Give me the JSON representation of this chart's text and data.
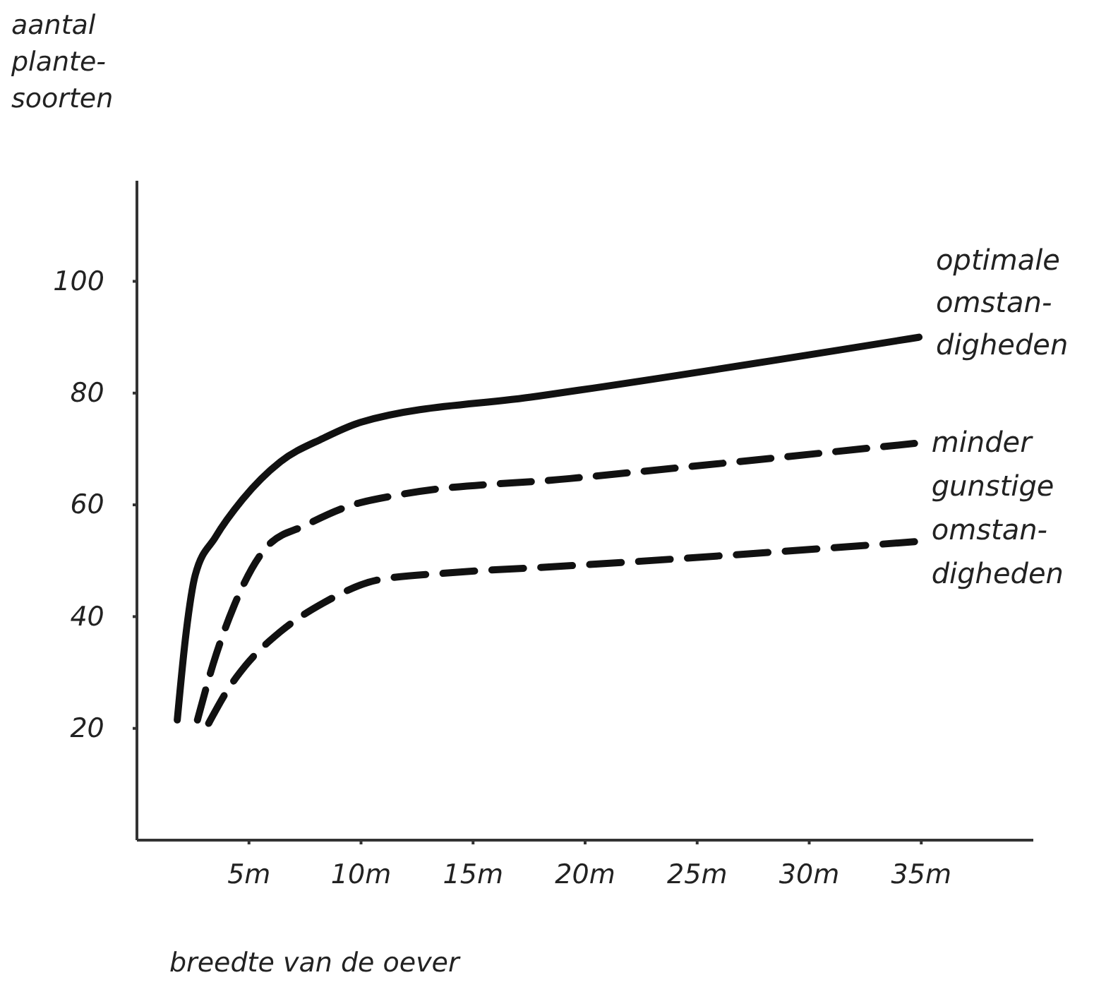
{
  "chart_data": {
    "type": "line",
    "xlabel": "breedte van de oever",
    "ylabel": "aantal\nplante-\nsoorten",
    "xlim": [
      0,
      40
    ],
    "ylim": [
      0,
      118
    ],
    "xticks": [
      {
        "value": 5,
        "label": "5m"
      },
      {
        "value": 10,
        "label": "10m"
      },
      {
        "value": 15,
        "label": "15m"
      },
      {
        "value": 20,
        "label": "20m"
      },
      {
        "value": 25,
        "label": "25m"
      },
      {
        "value": 30,
        "label": "30m"
      },
      {
        "value": 35,
        "label": "35m"
      }
    ],
    "yticks": [
      20,
      40,
      60,
      80,
      100
    ],
    "grid": false,
    "marker": "none",
    "series": [
      {
        "name": "optimale\nomstan-\ndigheden",
        "color": "#111111",
        "line_style": "solid",
        "x": [
          1.8,
          2.2,
          2.6,
          3.5,
          4.7,
          6.4,
          8.3,
          10,
          17.8,
          19.7,
          34.9
        ],
        "values": [
          21.5,
          37.3,
          47.4,
          54.2,
          60.9,
          67.7,
          71.9,
          74.8,
          79.4,
          80.5,
          90.0
        ]
      },
      {
        "color": "#111111",
        "line_style": "dashed",
        "x": [
          2.7,
          3.4,
          4.3,
          5.8,
          7.5,
          9.4,
          11.7,
          19.3,
          34.7
        ],
        "values": [
          21.5,
          31.5,
          41.6,
          52.5,
          56.3,
          59.7,
          61.8,
          64.7,
          71.0
        ]
      },
      {
        "color": "#111111",
        "line_style": "dashed",
        "x": [
          3.2,
          4.1,
          4.9,
          6.4,
          8.3,
          10.8,
          14.2,
          19.3,
          34.7
        ],
        "values": [
          20.9,
          27.2,
          31.5,
          37.3,
          42.4,
          46.6,
          47.9,
          49.1,
          53.4
        ]
      }
    ],
    "annotations": [
      "minder\ngunstige\nomstan-\ndigheden"
    ]
  }
}
